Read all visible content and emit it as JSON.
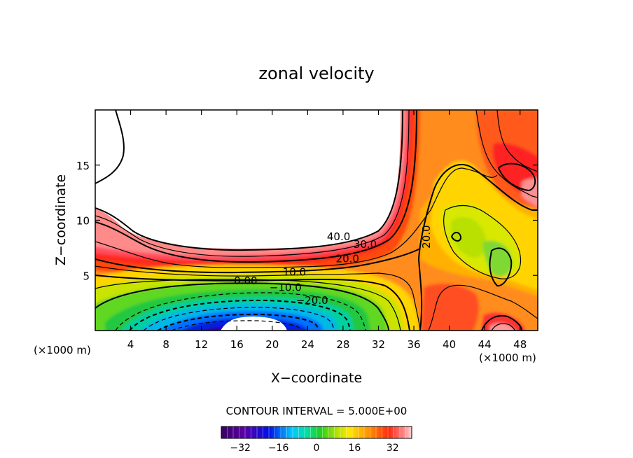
{
  "chart_data": {
    "type": "contour",
    "title": "zonal velocity",
    "xlabel": "X−coordinate",
    "ylabel": "Z−coordinate",
    "x_unit": "(×1000 m)",
    "y_unit": "(×1000 m)",
    "xlim": [
      0,
      50
    ],
    "ylim": [
      0,
      20
    ],
    "x_ticks": [
      4,
      8,
      12,
      16,
      20,
      24,
      28,
      32,
      36,
      40,
      44,
      48
    ],
    "y_ticks": [
      5,
      10,
      15
    ],
    "x_tick_labels": [
      "4",
      "8",
      "12",
      "16",
      "20",
      "24",
      "28",
      "32",
      "36",
      "40",
      "44",
      "48"
    ],
    "y_tick_labels": [
      "5",
      "10",
      "15"
    ],
    "contour_interval_text": "CONTOUR INTERVAL = 5.000E+00",
    "contour_labels": [
      {
        "text": "40.0",
        "x": 27.5,
        "y": 8.2
      },
      {
        "text": "30.0",
        "x": 30.5,
        "y": 7.5
      },
      {
        "text": "20.0",
        "x": 28.5,
        "y": 6.2
      },
      {
        "text": "20.0",
        "x": 37.8,
        "y": 8.5,
        "rotate": -90
      },
      {
        "text": "10.0",
        "x": 22.5,
        "y": 5.0
      },
      {
        "text": "0.00",
        "x": 17.0,
        "y": 4.2
      },
      {
        "text": "−10.0",
        "x": 21.5,
        "y": 3.6
      },
      {
        "text": "−20.0",
        "x": 24.5,
        "y": 2.4
      }
    ],
    "colorbar": {
      "range": [
        -40,
        40
      ],
      "ticks": [
        -32,
        -16,
        0,
        16,
        32
      ],
      "tick_labels": [
        "−32",
        "−16",
        "0",
        "16",
        "32"
      ]
    }
  }
}
